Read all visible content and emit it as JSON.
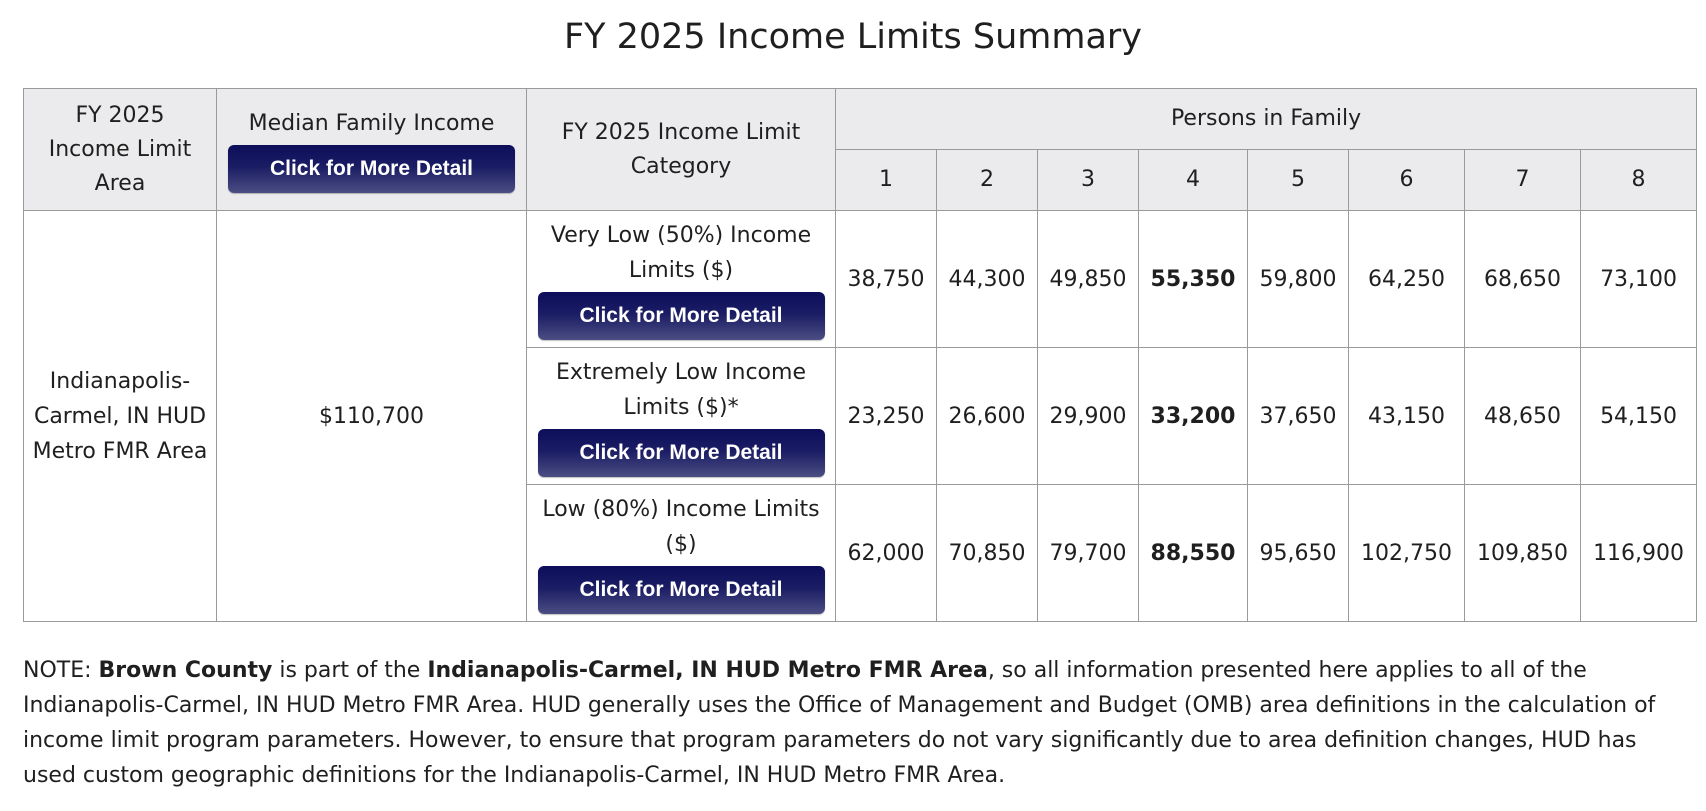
{
  "title": "FY 2025 Income Limits Summary",
  "table": {
    "headers": {
      "area": "FY 2025 Income Limit Area",
      "median": "Median Family Income",
      "category": "FY 2025 Income Limit Category",
      "persons": "Persons in Family",
      "person_counts": [
        "1",
        "2",
        "3",
        "4",
        "5",
        "6",
        "7",
        "8"
      ]
    },
    "detail_button_label": "Click for More Detail",
    "area_name": "Indianapolis-Carmel, IN HUD Metro FMR Area",
    "median_income": "$110,700",
    "rows": [
      {
        "category": "Very Low (50%) Income Limits ($)",
        "values": [
          "38,750",
          "44,300",
          "49,850",
          "55,350",
          "59,800",
          "64,250",
          "68,650",
          "73,100"
        ]
      },
      {
        "category": "Extremely Low Income Limits ($)*",
        "values": [
          "23,250",
          "26,600",
          "29,900",
          "33,200",
          "37,650",
          "43,150",
          "48,650",
          "54,150"
        ]
      },
      {
        "category": "Low (80%) Income Limits ($)",
        "values": [
          "62,000",
          "70,850",
          "79,700",
          "88,550",
          "95,650",
          "102,750",
          "109,850",
          "116,900"
        ]
      }
    ]
  },
  "note": {
    "prefix": "NOTE: ",
    "county": "Brown County",
    "mid": " is part of the ",
    "area": "Indianapolis-Carmel, IN HUD Metro FMR Area",
    "rest": ", so all information presented here applies to all of the Indianapolis-Carmel, IN HUD Metro FMR Area. HUD generally uses the Office of Management and Budget (OMB) area definitions in the calculation of income limit program parameters. However, to ensure that program parameters do not vary significantly due to area definition changes, HUD has used custom geographic definitions for the Indianapolis-Carmel, IN HUD Metro FMR Area."
  },
  "colors": {
    "header_bg": "#ebebed",
    "button_bg": "#1a1c64",
    "border": "#9a9a9a"
  }
}
